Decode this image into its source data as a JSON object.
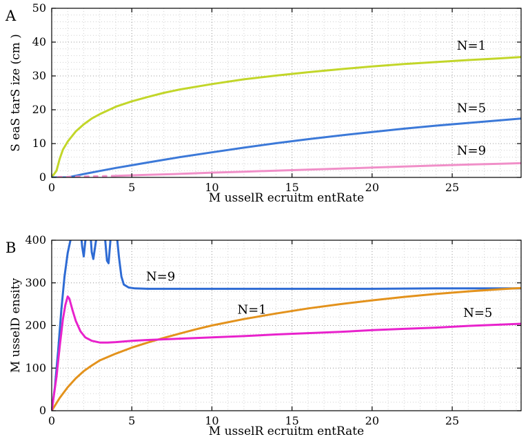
{
  "figure": {
    "background": "#ffffff",
    "grid_color_minor": "#cfcfcf",
    "grid_color_major": "#9a9a9a",
    "axis_color": "#000000"
  },
  "chart_data": [
    {
      "id": "A",
      "type": "line",
      "panel_label": "A",
      "title": "",
      "xlabel": "M usselR ecruitm entRate",
      "ylabel": "S eaS tarS ize (cm )",
      "xlim": [
        0,
        29.3
      ],
      "ylim": [
        0,
        50
      ],
      "xticks": [
        0,
        5,
        10,
        15,
        20,
        25
      ],
      "yticks": [
        0,
        10,
        20,
        30,
        40,
        50
      ],
      "grid": {
        "on": true,
        "x_minor": 1,
        "y_minor": 2
      },
      "series": [
        {
          "name": "N=1",
          "color": "#c2d629",
          "width": 3,
          "points": [
            [
              0,
              0
            ],
            [
              0.3,
              2
            ],
            [
              0.5,
              5.5
            ],
            [
              0.7,
              8.2
            ],
            [
              1,
              10.6
            ],
            [
              1.5,
              13.6
            ],
            [
              2,
              15.7
            ],
            [
              2.5,
              17.4
            ],
            [
              3,
              18.7
            ],
            [
              4,
              20.9
            ],
            [
              5,
              22.5
            ],
            [
              6,
              23.8
            ],
            [
              7,
              25
            ],
            [
              8,
              26
            ],
            [
              10,
              27.6
            ],
            [
              12,
              29
            ],
            [
              14,
              30.1
            ],
            [
              16,
              31.1
            ],
            [
              18,
              32
            ],
            [
              20,
              32.8
            ],
            [
              22,
              33.5
            ],
            [
              24,
              34.1
            ],
            [
              26,
              34.7
            ],
            [
              28,
              35.2
            ],
            [
              29.3,
              35.6
            ]
          ]
        },
        {
          "name": "N=5",
          "color": "#3c79d8",
          "width": 3,
          "points": [
            [
              0,
              0
            ],
            [
              1,
              0
            ],
            [
              1.5,
              0.5
            ],
            [
              2,
              1
            ],
            [
              3,
              1.9
            ],
            [
              4,
              2.8
            ],
            [
              5,
              3.6
            ],
            [
              6,
              4.4
            ],
            [
              7,
              5.2
            ],
            [
              8,
              6
            ],
            [
              10,
              7.4
            ],
            [
              12,
              8.8
            ],
            [
              14,
              10.1
            ],
            [
              16,
              11.3
            ],
            [
              18,
              12.4
            ],
            [
              20,
              13.4
            ],
            [
              22,
              14.4
            ],
            [
              24,
              15.3
            ],
            [
              26,
              16.1
            ],
            [
              28,
              16.9
            ],
            [
              29.3,
              17.4
            ]
          ]
        },
        {
          "name": "N=9-dashed",
          "color": "#f08fc8",
          "width": 3,
          "dash": "5 8",
          "points": [
            [
              0.4,
              0.1
            ],
            [
              1,
              0.15
            ],
            [
              2,
              0.25
            ],
            [
              3,
              0.35
            ],
            [
              4,
              0.45
            ]
          ]
        },
        {
          "name": "N=9",
          "color": "#f08fc8",
          "width": 3,
          "points": [
            [
              4,
              0.45
            ],
            [
              6,
              0.75
            ],
            [
              8,
              1.05
            ],
            [
              10,
              1.4
            ],
            [
              12,
              1.7
            ],
            [
              14,
              2
            ],
            [
              16,
              2.3
            ],
            [
              18,
              2.6
            ],
            [
              20,
              2.9
            ],
            [
              22,
              3.2
            ],
            [
              24,
              3.5
            ],
            [
              26,
              3.8
            ],
            [
              28,
              4.05
            ],
            [
              29.3,
              4.2
            ]
          ]
        }
      ],
      "labels": [
        {
          "text": "N=1",
          "x": 26.2,
          "y": 39
        },
        {
          "text": "N=5",
          "x": 26.2,
          "y": 20.5
        },
        {
          "text": "N=9",
          "x": 26.2,
          "y": 8
        }
      ]
    },
    {
      "id": "B",
      "type": "line",
      "panel_label": "B",
      "title": "",
      "xlabel": "M usselR ecruitm entRate",
      "ylabel": "M usselD ensity",
      "xlim": [
        0,
        29.3
      ],
      "ylim": [
        0,
        400
      ],
      "xticks": [
        0,
        5,
        10,
        15,
        20,
        25
      ],
      "yticks": [
        0,
        100,
        200,
        300,
        400
      ],
      "grid": {
        "on": true,
        "x_minor": 1,
        "y_minor": 20
      },
      "series": [
        {
          "name": "N=9",
          "color": "#2e6bd4",
          "width": 3,
          "points": [
            [
              0,
              0
            ],
            [
              0.2,
              55
            ],
            [
              0.4,
              140
            ],
            [
              0.6,
              235
            ],
            [
              0.8,
              315
            ],
            [
              1.0,
              370
            ],
            [
              1.2,
              405
            ],
            [
              1.4,
              425
            ],
            [
              1.6,
              432
            ],
            [
              1.8,
              428
            ],
            [
              1.9,
              385
            ],
            [
              2.0,
              362
            ],
            [
              2.1,
              398
            ],
            [
              2.25,
              430
            ],
            [
              2.4,
              424
            ],
            [
              2.5,
              372
            ],
            [
              2.6,
              356
            ],
            [
              2.75,
              395
            ],
            [
              2.9,
              428
            ],
            [
              3.1,
              432
            ],
            [
              3.3,
              418
            ],
            [
              3.45,
              352
            ],
            [
              3.55,
              346
            ],
            [
              3.7,
              415
            ],
            [
              3.9,
              430
            ],
            [
              4.05,
              418
            ],
            [
              4.2,
              360
            ],
            [
              4.35,
              315
            ],
            [
              4.5,
              296
            ],
            [
              4.8,
              289
            ],
            [
              5.2,
              287
            ],
            [
              6,
              286
            ],
            [
              8,
              286
            ],
            [
              10,
              286
            ],
            [
              13,
              286
            ],
            [
              16,
              286
            ],
            [
              20,
              286
            ],
            [
              24,
              287
            ],
            [
              27,
              287
            ],
            [
              29.3,
              287
            ]
          ]
        },
        {
          "name": "N=1",
          "color": "#e3921c",
          "width": 3,
          "points": [
            [
              0,
              0
            ],
            [
              0.5,
              30
            ],
            [
              1,
              55
            ],
            [
              1.5,
              76
            ],
            [
              2,
              93
            ],
            [
              2.5,
              106
            ],
            [
              3,
              118
            ],
            [
              4,
              134
            ],
            [
              5,
              148
            ],
            [
              6,
              160
            ],
            [
              7,
              171
            ],
            [
              8,
              181
            ],
            [
              9,
              191
            ],
            [
              10,
              200
            ],
            [
              12,
              215
            ],
            [
              14,
              228
            ],
            [
              16,
              240
            ],
            [
              18,
              250
            ],
            [
              20,
              259
            ],
            [
              22,
              267
            ],
            [
              24,
              274
            ],
            [
              26,
              280
            ],
            [
              28,
              285
            ],
            [
              29.3,
              288
            ]
          ]
        },
        {
          "name": "N=5",
          "color": "#e822cc",
          "width": 3,
          "points": [
            [
              0,
              0
            ],
            [
              0.3,
              80
            ],
            [
              0.5,
              150
            ],
            [
              0.7,
              215
            ],
            [
              0.85,
              248
            ],
            [
              1.0,
              268
            ],
            [
              1.1,
              263
            ],
            [
              1.3,
              236
            ],
            [
              1.5,
              211
            ],
            [
              1.8,
              186
            ],
            [
              2.1,
              172
            ],
            [
              2.5,
              164
            ],
            [
              3,
              160
            ],
            [
              3.5,
              160
            ],
            [
              4,
              161
            ],
            [
              5,
              164
            ],
            [
              6,
              166
            ],
            [
              8,
              169
            ],
            [
              10,
              172
            ],
            [
              12,
              175
            ],
            [
              14,
              179
            ],
            [
              16,
              182
            ],
            [
              18,
              185
            ],
            [
              20,
              189
            ],
            [
              22,
              192
            ],
            [
              24,
              195
            ],
            [
              26,
              199
            ],
            [
              28,
              202
            ],
            [
              29.3,
              204
            ]
          ]
        }
      ],
      "labels": [
        {
          "text": "N=9",
          "x": 6.8,
          "y": 315
        },
        {
          "text": "N=1",
          "x": 12.5,
          "y": 237
        },
        {
          "text": "N=5",
          "x": 26.6,
          "y": 230
        }
      ]
    }
  ]
}
